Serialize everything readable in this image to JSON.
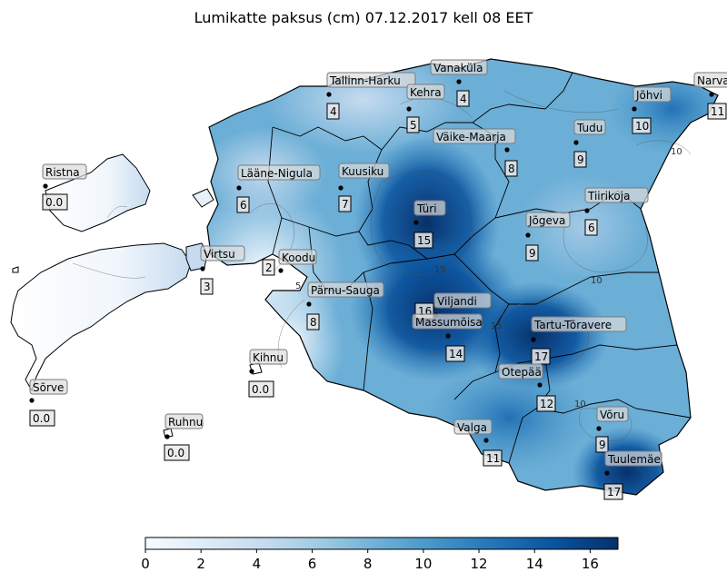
{
  "title": "Lumikatte paksus (cm) 07.12.2017 kell 08 EET",
  "colorbar": {
    "min": 0,
    "max": 17,
    "ticks": [
      0,
      2,
      4,
      6,
      8,
      10,
      12,
      14,
      16
    ],
    "colors": [
      "#f7fbff",
      "#deebf7",
      "#c6dbef",
      "#9ecae1",
      "#6baed6",
      "#4292c6",
      "#2171b5",
      "#08519c",
      "#08306b"
    ]
  },
  "contour_labels": [
    {
      "text": "5"
    },
    {
      "text": "10"
    },
    {
      "text": "10"
    },
    {
      "text": "10"
    },
    {
      "text": "15"
    },
    {
      "text": "15"
    }
  ],
  "stations": [
    {
      "name": "Narva",
      "value": "11"
    },
    {
      "name": "Vanaküla",
      "value": "4"
    },
    {
      "name": "Tallinn-Harku",
      "value": "4"
    },
    {
      "name": "Kehra",
      "value": "5"
    },
    {
      "name": "Jõhvi",
      "value": "10"
    },
    {
      "name": "Tudu",
      "value": "9"
    },
    {
      "name": "Väike-Maarja",
      "value": "8"
    },
    {
      "name": "Ristna",
      "value": "0.0"
    },
    {
      "name": "Lääne-Nigula",
      "value": "6"
    },
    {
      "name": "Kuusiku",
      "value": "7"
    },
    {
      "name": "Tiirikoja",
      "value": "6"
    },
    {
      "name": "Türi",
      "value": "15"
    },
    {
      "name": "Jõgeva",
      "value": "9"
    },
    {
      "name": "Virtsu",
      "value": "3"
    },
    {
      "name": "Koodu",
      "value": "2"
    },
    {
      "name": "Pärnu-Sauga",
      "value": "8"
    },
    {
      "name": "Viljandi",
      "value": "16"
    },
    {
      "name": "Massumõisa",
      "value": "14"
    },
    {
      "name": "Tartu-Tõravere",
      "value": "17"
    },
    {
      "name": "Kihnu",
      "value": "0.0"
    },
    {
      "name": "Sõrve",
      "value": "0.0"
    },
    {
      "name": "Otepää",
      "value": "12"
    },
    {
      "name": "Võru",
      "value": "9"
    },
    {
      "name": "Ruhnu",
      "value": "0.0"
    },
    {
      "name": "Valga",
      "value": "11"
    },
    {
      "name": "Tuulemäe",
      "value": "17"
    }
  ]
}
